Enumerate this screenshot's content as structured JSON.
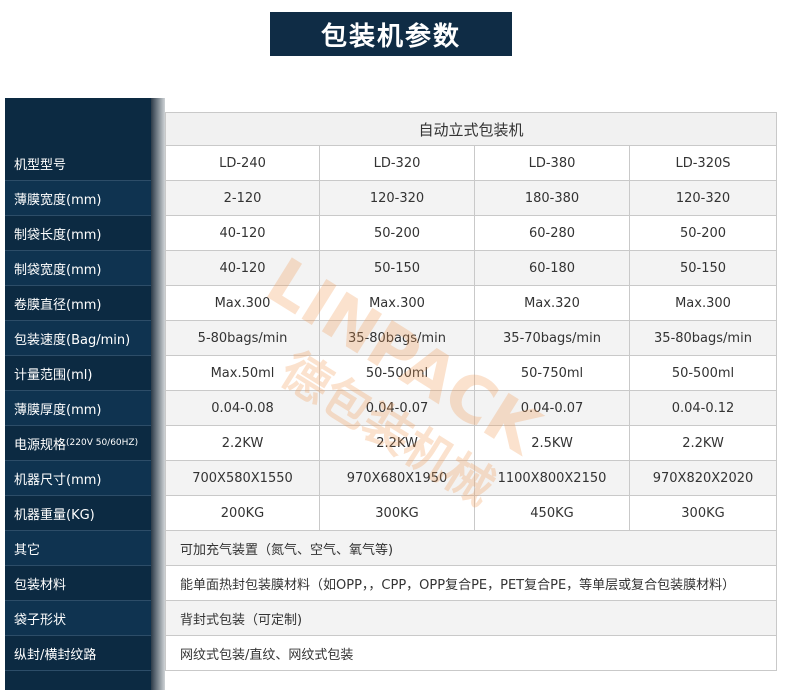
{
  "title": "包装机参数",
  "table": {
    "header": "自动立式包装机",
    "rows": [
      {
        "label": "机型型号",
        "cells": [
          "LD-240",
          "LD-320",
          "LD-380",
          "LD-320S"
        ]
      },
      {
        "label": "薄膜宽度(mm)",
        "cells": [
          "2-120",
          "120-320",
          "180-380",
          "120-320"
        ]
      },
      {
        "label": "制袋长度(mm)",
        "cells": [
          "40-120",
          "50-200",
          "60-280",
          "50-200"
        ]
      },
      {
        "label": "制袋宽度(mm)",
        "cells": [
          "40-120",
          "50-150",
          "60-180",
          "50-150"
        ]
      },
      {
        "label": "卷膜直径(mm)",
        "cells": [
          "Max.300",
          "Max.300",
          "Max.320",
          "Max.300"
        ]
      },
      {
        "label": "包装速度(Bag/min)",
        "cells": [
          "5-80bags/min",
          "35-80bags/min",
          "35-70bags/min",
          "35-80bags/min"
        ]
      },
      {
        "label": "计量范围(ml)",
        "cells": [
          "Max.50ml",
          "50-500ml",
          "50-750ml",
          "50-500ml"
        ]
      },
      {
        "label": "薄膜厚度(mm)",
        "cells": [
          "0.04-0.08",
          "0.04-0.07",
          "0.04-0.07",
          "0.04-0.12"
        ]
      },
      {
        "label": "电源规格",
        "note": "(220V 50/60HZ)",
        "cells": [
          "2.2KW",
          "2.2KW",
          "2.5KW",
          "2.2KW"
        ]
      },
      {
        "label": "机器尺寸(mm)",
        "cells": [
          "700X580X1550",
          "970X680X1950",
          "1100X800X2150",
          "970X820X2020"
        ]
      },
      {
        "label": "机器重量(KG)",
        "cells": [
          "200KG",
          "300KG",
          "450KG",
          "300KG"
        ]
      },
      {
        "label": "其它",
        "cells": [
          "可加充气装置（氮气、空气、氧气等)"
        ]
      },
      {
        "label": "包装材料",
        "cells": [
          "能单面热封包装膜材料（如OPP，，CPP，OPP复合PE，PET复合PE，等单层或复合包装膜材料）"
        ]
      },
      {
        "label": "袋子形状",
        "cells": [
          "背封式包装（可定制)"
        ]
      },
      {
        "label": "纵封/横封纹路",
        "cells": [
          "网纹式包装/直纹、网纹式包装"
        ]
      }
    ]
  },
  "watermark": {
    "brand": "LINPACK",
    "name": "德包装机械"
  }
}
